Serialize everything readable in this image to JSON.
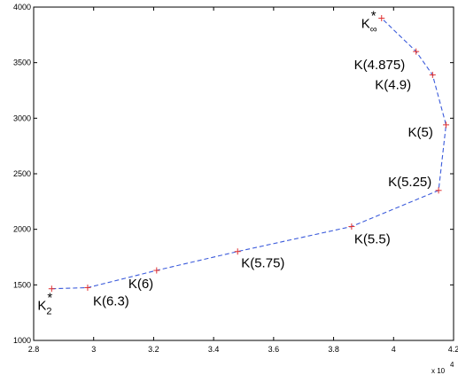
{
  "chart_data": {
    "type": "line",
    "title": "",
    "xlabel": "",
    "ylabel": "",
    "x_multiplier_label": "x 10",
    "x_multiplier_exponent": "4",
    "xlim": [
      2.8,
      4.2
    ],
    "ylim": [
      1000,
      4000
    ],
    "x_ticks": [
      2.8,
      3.0,
      3.2,
      3.4,
      3.6,
      3.8,
      4.0,
      4.2
    ],
    "x_tick_labels": [
      "2.8",
      "3",
      "3.2",
      "3.4",
      "3.6",
      "3.8",
      "4",
      "4.2"
    ],
    "y_ticks": [
      1000,
      1500,
      2000,
      2500,
      3000,
      3500,
      4000
    ],
    "y_tick_labels": [
      "1000",
      "1500",
      "2000",
      "2500",
      "3000",
      "3500",
      "4000"
    ],
    "grid": false,
    "line_color": "#3b5bdb",
    "line_style": "dashed",
    "marker": "+",
    "marker_color": "#e03131",
    "points": [
      {
        "x": 2.86,
        "y": 1465,
        "label": "K",
        "sub": "2",
        "sup": "*"
      },
      {
        "x": 2.98,
        "y": 1475,
        "label": "K(6.3)"
      },
      {
        "x": 3.21,
        "y": 1630,
        "label": "K(6)"
      },
      {
        "x": 3.48,
        "y": 1800,
        "label": "K(5.75)"
      },
      {
        "x": 3.86,
        "y": 2025,
        "label": "K(5.5)"
      },
      {
        "x": 4.15,
        "y": 2350,
        "label": "K(5.25)"
      },
      {
        "x": 4.175,
        "y": 2940,
        "label": "K(5)"
      },
      {
        "x": 4.13,
        "y": 3390,
        "label": "K(4.9)"
      },
      {
        "x": 4.075,
        "y": 3600,
        "label": "K(4.875)"
      },
      {
        "x": 3.96,
        "y": 3900,
        "label": "K",
        "sub": "∞",
        "sup": "*"
      }
    ]
  }
}
